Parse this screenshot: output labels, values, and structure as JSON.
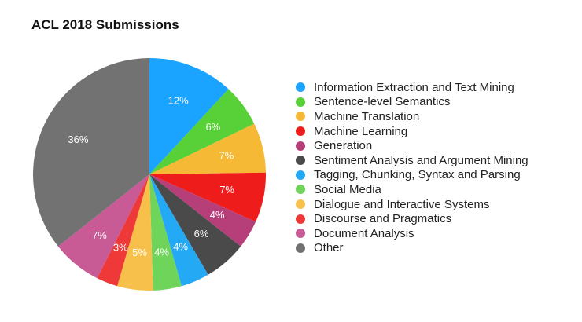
{
  "chart_data": {
    "type": "pie",
    "title": "ACL 2018 Submissions",
    "slices": [
      {
        "label": "Information Extraction and Text Mining",
        "value": 12,
        "display": "12%",
        "color": "#1aa3ff"
      },
      {
        "label": "Sentence-level Semantics",
        "value": 6,
        "display": "6%",
        "color": "#57d137"
      },
      {
        "label": "Machine Translation",
        "value": 7,
        "display": "7%",
        "color": "#f5b935"
      },
      {
        "label": "Machine Learning",
        "value": 7,
        "display": "7%",
        "color": "#ef1c1c"
      },
      {
        "label": "Generation",
        "value": 4,
        "display": "4%",
        "color": "#b63e79"
      },
      {
        "label": "Sentiment Analysis and Argument Mining",
        "value": 6,
        "display": "6%",
        "color": "#4a4a4a"
      },
      {
        "label": "Tagging, Chunking, Syntax and Parsing",
        "value": 4,
        "display": "4%",
        "color": "#24a9f5"
      },
      {
        "label": "Social Media",
        "value": 4,
        "display": "4%",
        "color": "#6fd45a"
      },
      {
        "label": "Dialogue and Interactive Systems",
        "value": 5,
        "display": "5%",
        "color": "#f7c04a"
      },
      {
        "label": "Discourse and Pragmatics",
        "value": 3,
        "display": "3%",
        "color": "#ef3838"
      },
      {
        "label": "Document Analysis",
        "value": 7,
        "display": "7%",
        "color": "#c85a96"
      },
      {
        "label": "Other",
        "value": 36,
        "display": "36%",
        "color": "#727272"
      }
    ],
    "legend_position": "right"
  }
}
